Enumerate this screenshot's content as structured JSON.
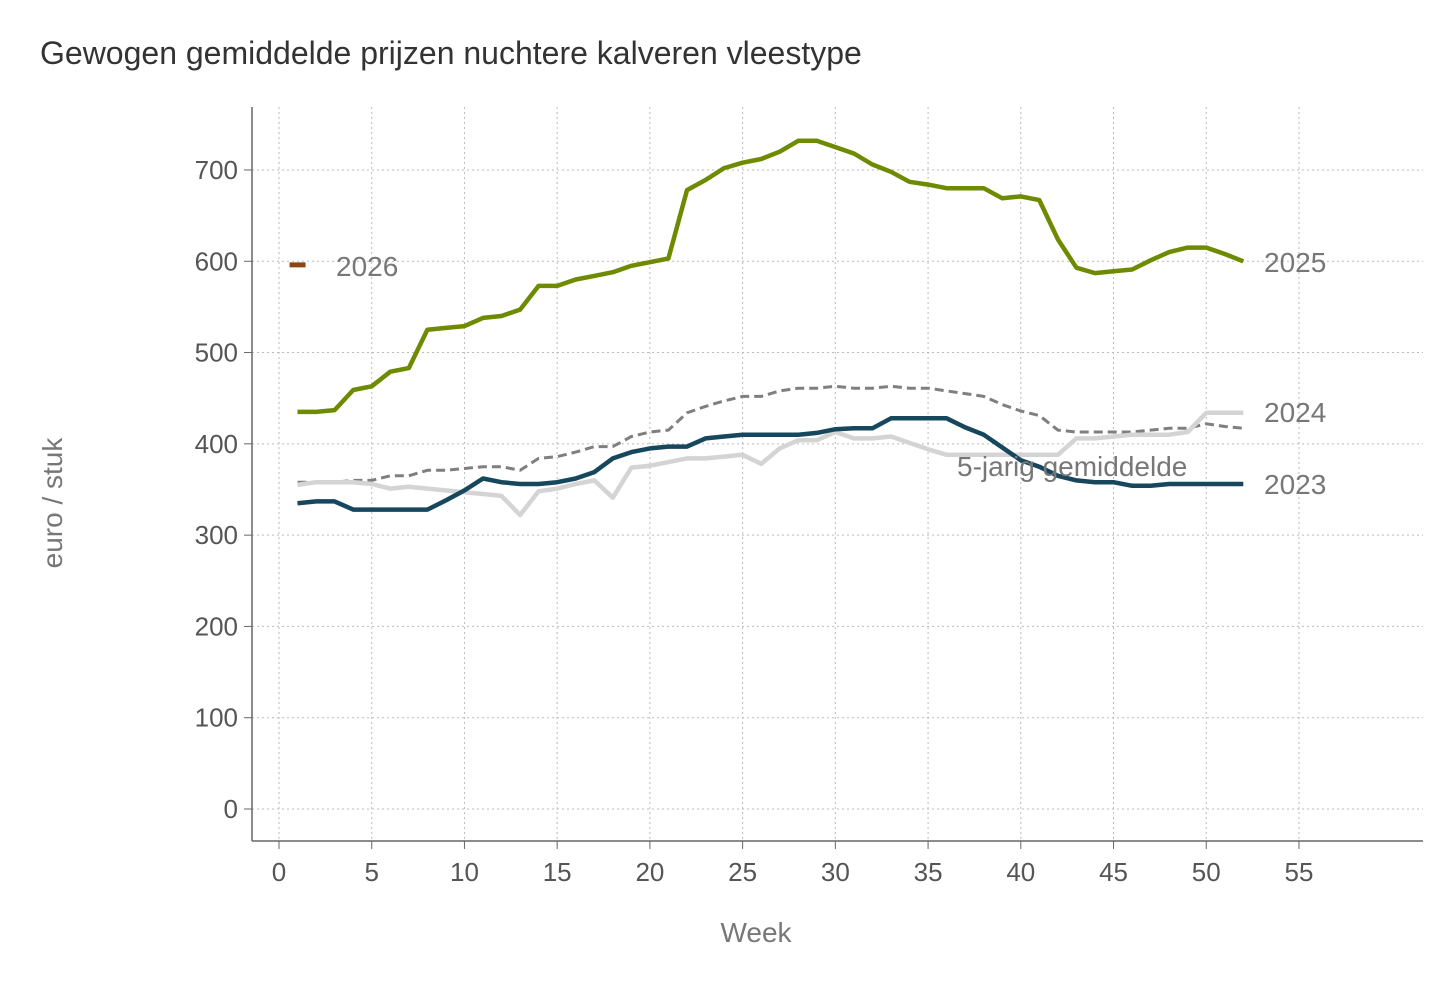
{
  "chart_data": {
    "type": "line",
    "title": "Gewogen gemiddelde prijzen nuchtere kalveren vleestype",
    "xlabel": "Week",
    "ylabel": "euro / stuk",
    "xlim": [
      -1,
      61
    ],
    "ylim": [
      -35,
      765
    ],
    "xticks": [
      0,
      5,
      10,
      15,
      20,
      25,
      30,
      35,
      40,
      45,
      50,
      55
    ],
    "yticks": [
      0,
      100,
      200,
      300,
      400,
      500,
      600,
      700
    ],
    "grid": true,
    "legend": "inline labels",
    "series": [
      {
        "name": "5-jarig gemiddelde",
        "color": "#7f7f7f",
        "dashed": true,
        "x": [
          1,
          2,
          3,
          4,
          5,
          6,
          7,
          8,
          9,
          10,
          11,
          12,
          13,
          14,
          15,
          16,
          17,
          18,
          19,
          20,
          21,
          22,
          23,
          24,
          25,
          26,
          27,
          28,
          29,
          30,
          31,
          32,
          33,
          34,
          35,
          36,
          37,
          38,
          39,
          40,
          41,
          42,
          43,
          44,
          45,
          46,
          47,
          48,
          49,
          50,
          51,
          52
        ],
        "values": [
          358,
          358,
          358,
          360,
          360,
          365,
          365,
          371,
          371,
          373,
          375,
          375,
          371,
          384,
          386,
          391,
          397,
          397,
          408,
          413,
          415,
          434,
          441,
          447,
          452,
          452,
          458,
          461,
          461,
          463,
          461,
          461,
          463,
          461,
          461,
          458,
          455,
          452,
          443,
          436,
          431,
          415,
          413,
          413,
          413,
          413,
          415,
          417,
          417,
          422,
          419,
          417
        ]
      },
      {
        "name": "2024",
        "color": "#d4d4d4",
        "dashed": false,
        "x": [
          1,
          2,
          3,
          4,
          5,
          6,
          7,
          8,
          9,
          10,
          11,
          12,
          13,
          14,
          15,
          16,
          17,
          18,
          19,
          20,
          21,
          22,
          23,
          24,
          25,
          26,
          27,
          28,
          29,
          30,
          31,
          32,
          33,
          34,
          35,
          36,
          37,
          38,
          39,
          40,
          41,
          42,
          43,
          44,
          45,
          46,
          47,
          48,
          49,
          50,
          51,
          52
        ],
        "values": [
          355,
          358,
          358,
          358,
          356,
          351,
          353,
          351,
          349,
          347,
          345,
          343,
          322,
          348,
          351,
          356,
          360,
          341,
          374,
          376,
          380,
          384,
          384,
          386,
          388,
          378,
          395,
          404,
          404,
          413,
          406,
          406,
          408,
          401,
          394,
          388,
          388,
          388,
          388,
          388,
          388,
          388,
          406,
          406,
          408,
          410,
          410,
          410,
          413,
          434,
          434,
          434
        ]
      },
      {
        "name": "2023",
        "color": "#17475c",
        "dashed": false,
        "x": [
          1,
          2,
          3,
          4,
          5,
          6,
          7,
          8,
          9,
          10,
          11,
          12,
          13,
          14,
          15,
          16,
          17,
          18,
          19,
          20,
          21,
          22,
          23,
          24,
          25,
          26,
          27,
          28,
          29,
          30,
          31,
          32,
          33,
          34,
          35,
          36,
          37,
          38,
          39,
          40,
          41,
          42,
          43,
          44,
          45,
          46,
          47,
          48,
          49,
          50,
          51,
          52
        ],
        "values": [
          335,
          337,
          337,
          328,
          328,
          328,
          328,
          328,
          338,
          349,
          362,
          358,
          356,
          356,
          358,
          362,
          369,
          384,
          391,
          395,
          397,
          397,
          406,
          408,
          410,
          410,
          410,
          410,
          412,
          416,
          417,
          417,
          428,
          428,
          428,
          428,
          418,
          410,
          396,
          382,
          375,
          365,
          360,
          358,
          358,
          354,
          354,
          356,
          356,
          356,
          356,
          356
        ]
      },
      {
        "name": "2025",
        "color": "#6e8b00",
        "dashed": false,
        "x": [
          1,
          2,
          3,
          4,
          5,
          6,
          7,
          8,
          9,
          10,
          11,
          12,
          13,
          14,
          15,
          16,
          17,
          18,
          19,
          20,
          21,
          22,
          23,
          24,
          25,
          26,
          27,
          28,
          29,
          30,
          31,
          32,
          33,
          34,
          35,
          36,
          37,
          38,
          39,
          40,
          41,
          42,
          43,
          44,
          45,
          46,
          47,
          48,
          49,
          50,
          51,
          52
        ],
        "values": [
          435,
          435,
          437,
          459,
          463,
          479,
          483,
          525,
          527,
          529,
          538,
          540,
          547,
          573,
          573,
          580,
          584,
          588,
          595,
          599,
          603,
          678,
          689,
          702,
          708,
          712,
          720,
          732,
          732,
          725,
          718,
          706,
          698,
          687,
          684,
          680,
          680,
          680,
          669,
          671,
          667,
          624,
          593,
          587,
          589,
          591,
          601,
          610,
          615,
          615,
          608,
          600
        ]
      },
      {
        "name": "2026",
        "color": "#8b4513",
        "dashed": false,
        "x": [
          1
        ],
        "values": [
          596
        ]
      }
    ],
    "labels": {
      "avg": "5-jarig gemiddelde",
      "y2023": "2023",
      "y2024": "2024",
      "y2025": "2025",
      "y2026": "2026"
    }
  }
}
